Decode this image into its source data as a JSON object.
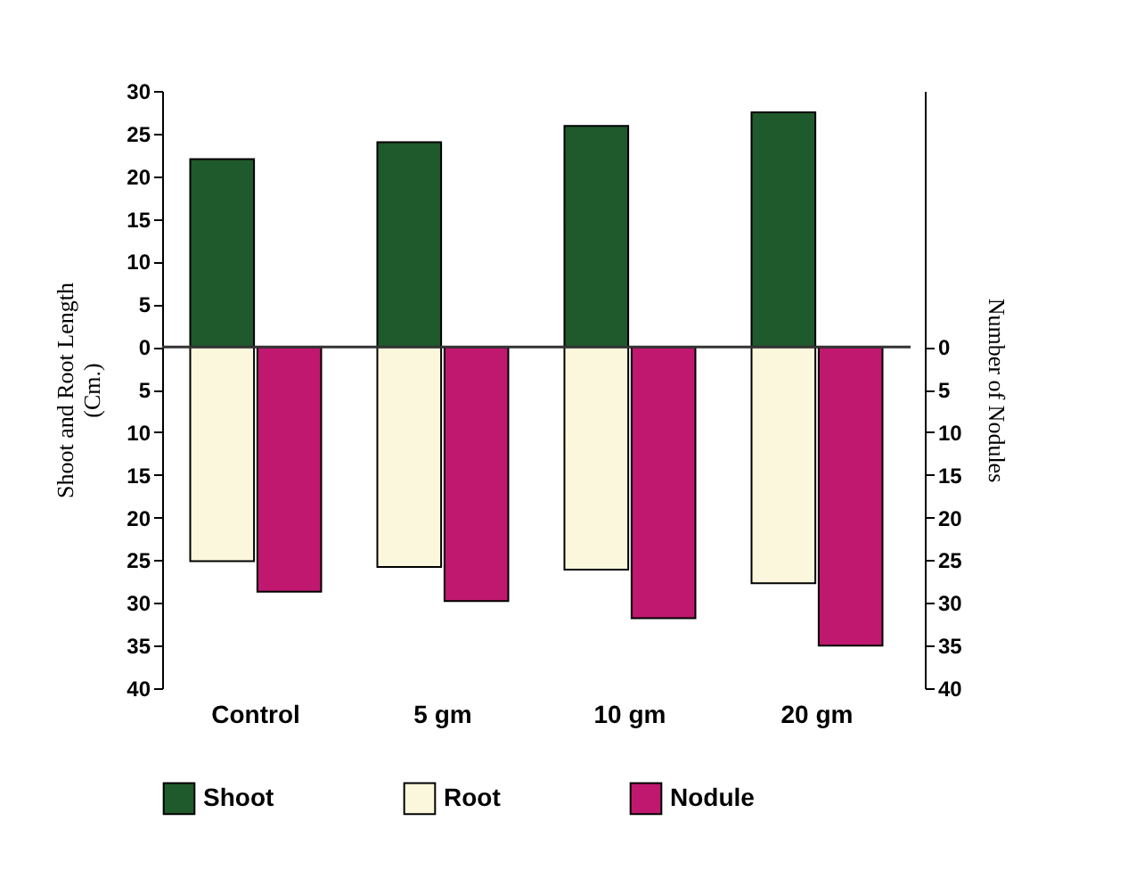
{
  "chart_data": {
    "type": "bar",
    "categories": [
      "Control",
      "5 gm",
      "10 gm",
      "20 gm"
    ],
    "series": [
      {
        "name": "Shoot",
        "color": "#1e5a2c",
        "values": [
          22,
          24,
          25.9,
          27.5
        ]
      },
      {
        "name": "Root",
        "color": "#fbf7dc",
        "values": [
          -25.1,
          -25.8,
          -26.1,
          -27.7
        ]
      },
      {
        "name": "Nodule",
        "color": "#c0186f",
        "axis": "y2",
        "values": [
          28.7,
          29.8,
          31.8,
          35
        ]
      }
    ],
    "ylabel": "Shoot and Root Length\n(Cm.)",
    "y2label": "Number of Nodules",
    "ylim": [
      -40,
      30
    ],
    "yticks": [
      {
        "value": -40,
        "label": "40"
      },
      {
        "value": -35,
        "label": "35"
      },
      {
        "value": -30,
        "label": "30"
      },
      {
        "value": -25,
        "label": "25"
      },
      {
        "value": -20,
        "label": "20"
      },
      {
        "value": -15,
        "label": "15"
      },
      {
        "value": -10,
        "label": "10"
      },
      {
        "value": -5,
        "label": "5"
      },
      0,
      5,
      10,
      15,
      20,
      25,
      30
    ],
    "y2lim": [
      40,
      -30
    ],
    "y2ticks": [
      0,
      5,
      10,
      15,
      20,
      25,
      30,
      35,
      40
    ],
    "ref_lines": [
      {
        "axis": "y",
        "value": 0
      }
    ],
    "stacked": true,
    "legend": "bottom",
    "grid": false
  }
}
